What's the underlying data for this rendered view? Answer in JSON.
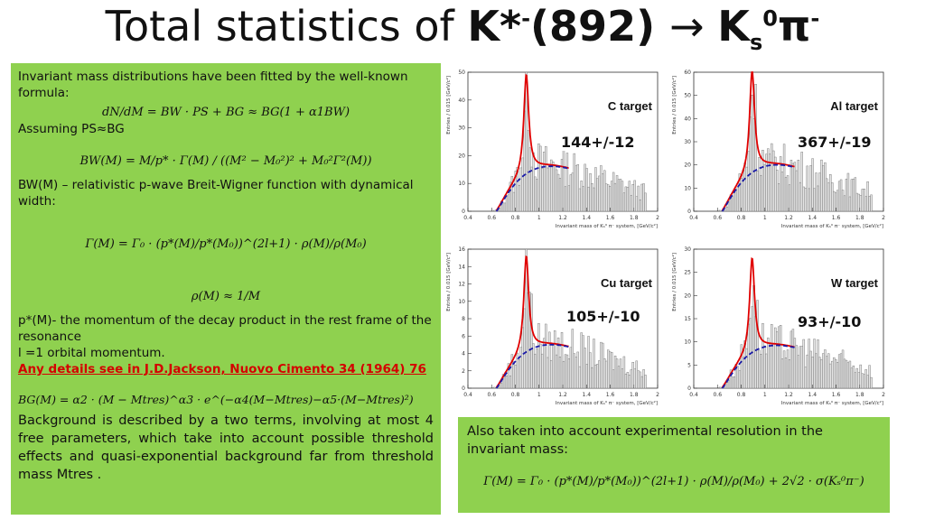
{
  "title": {
    "prefix": "Total statistics of ",
    "particle": "K*",
    "charge": "-",
    "mass": "(892) ",
    "arrow": "→ ",
    "decay_k": "K",
    "decay_sub": "s",
    "decay_sup": "0",
    "pion": "π",
    "pion_charge": "-"
  },
  "left_panel": {
    "intro": "Invariant mass distributions have been fitted by the well-known formula:",
    "formula1": "dN/dM = BW · PS + BG ≈ BG(1 + α1BW)",
    "assuming": "Assuming PS≈BG",
    "formula2": "BW(M) = M/p* · Γ(M) / ((M² − M₀²)² + M₀²Γ²(M))",
    "bw_desc": "BW(M) – relativistic p-wave Breit-Wigner function with dynamical width:",
    "formula3": "Γ(M) = Γ₀ · (p*(M)/p*(M₀))^(2l+1) · ρ(M)/ρ(M₀)",
    "formula4": "ρ(M) ≈ 1/M",
    "pstar_desc": "p*(M)- the momentum of the decay product in the rest frame of the resonance",
    "l_desc": "l =1 orbital momentum.",
    "reference": "Any details see in J.D.Jackson, Nuovo Cimento 34 (1964) 76",
    "formula5": "BG(M) = α2 · (M − Mtres)^α3 · e^(−α4(M−Mtres)−α5·(M−Mtres)²)",
    "bg_desc": "Background is described by a two terms, involving at most 4 free parameters, which take into account possible threshold effects and quasi-exponential background far from threshold mass Mtres ."
  },
  "right_panel": {
    "text": "Also taken into account experimental resolution in the invariant mass:",
    "formula": "Γ(M) = Γ₀ · (p*(M)/p*(M₀))^(2l+1) · ρ(M)/ρ(M₀) + 2√2 · σ(Kₛ⁰π⁻)"
  },
  "plots": [
    {
      "target": "C target",
      "stat": "144+/-12",
      "ymax": 50,
      "peak": 42
    },
    {
      "target": "Al target",
      "stat": "367+/-19",
      "ymax": 60,
      "peak": 52
    },
    {
      "target": "Cu target",
      "stat": "105+/-10",
      "ymax": 16,
      "peak": 13
    },
    {
      "target": "W target",
      "stat": "93+/-10",
      "ymax": 30,
      "peak": 24
    }
  ],
  "axis": {
    "xlabel": "Invariant mass of Kₛ⁰ π⁻ system, [GeV/c²]",
    "ylabel": "Entries / 0.015 [GeV/c²]",
    "xticks": [
      "0.4",
      "0.6",
      "0.8",
      "1",
      "1.2",
      "1.4",
      "1.6",
      "1.8",
      "2"
    ]
  },
  "colors": {
    "green": "#8fd14f",
    "fit": "#e00000",
    "bg": "#1a1aa8",
    "ref": "#d40000"
  }
}
